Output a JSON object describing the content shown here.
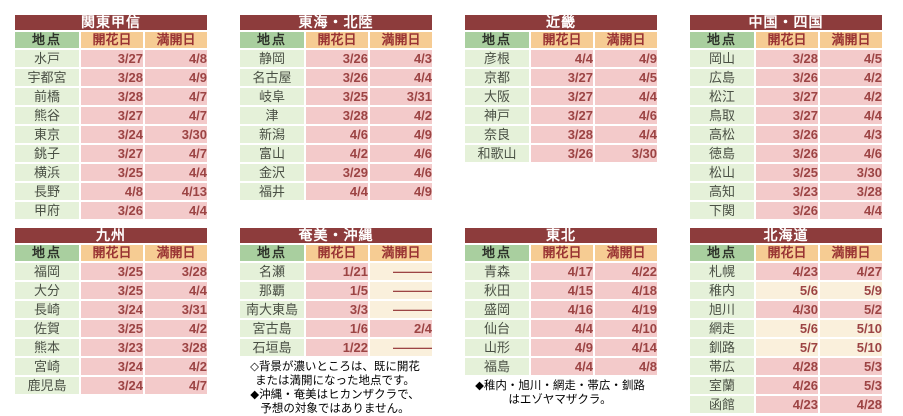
{
  "colors": {
    "title_bg": "#8d3c3c",
    "title_text": "#ffffff",
    "header_loc_bg": "#a9cf9f",
    "header_loc_text": "#2e332b",
    "header_date_bg": "#f6cc93",
    "header_date_text": "#993333",
    "loc_bg": "#e5f1d9",
    "loc_text": "#4a5045",
    "bloomed_bg": "#f3caca",
    "pending_bg": "#faf0dc",
    "date_text": "#9c4444",
    "note_text": "#000000"
  },
  "column_headers": {
    "location": "地点",
    "flowering": "開花日",
    "full_bloom": "満開日"
  },
  "regions": [
    {
      "title": "関東甲信",
      "rows": [
        {
          "name": "水戸",
          "flowering": "3/27",
          "flowering_bloomed": true,
          "full_bloom": "4/8",
          "full_bloom_bloomed": true
        },
        {
          "name": "宇都宮",
          "flowering": "3/28",
          "flowering_bloomed": true,
          "full_bloom": "4/9",
          "full_bloom_bloomed": true
        },
        {
          "name": "前橋",
          "flowering": "3/28",
          "flowering_bloomed": true,
          "full_bloom": "4/7",
          "full_bloom_bloomed": true
        },
        {
          "name": "熊谷",
          "flowering": "3/27",
          "flowering_bloomed": true,
          "full_bloom": "4/7",
          "full_bloom_bloomed": true
        },
        {
          "name": "東京",
          "flowering": "3/24",
          "flowering_bloomed": true,
          "full_bloom": "3/30",
          "full_bloom_bloomed": true
        },
        {
          "name": "銚子",
          "flowering": "3/27",
          "flowering_bloomed": true,
          "full_bloom": "4/7",
          "full_bloom_bloomed": true
        },
        {
          "name": "横浜",
          "flowering": "3/25",
          "flowering_bloomed": true,
          "full_bloom": "4/4",
          "full_bloom_bloomed": true
        },
        {
          "name": "長野",
          "flowering": "4/8",
          "flowering_bloomed": true,
          "full_bloom": "4/13",
          "full_bloom_bloomed": true
        },
        {
          "name": "甲府",
          "flowering": "3/26",
          "flowering_bloomed": true,
          "full_bloom": "4/4",
          "full_bloom_bloomed": true
        }
      ],
      "notes": []
    },
    {
      "title": "東海・北陸",
      "rows": [
        {
          "name": "静岡",
          "flowering": "3/26",
          "flowering_bloomed": true,
          "full_bloom": "4/3",
          "full_bloom_bloomed": true
        },
        {
          "name": "名古屋",
          "flowering": "3/26",
          "flowering_bloomed": true,
          "full_bloom": "4/4",
          "full_bloom_bloomed": true
        },
        {
          "name": "岐阜",
          "flowering": "3/25",
          "flowering_bloomed": true,
          "full_bloom": "3/31",
          "full_bloom_bloomed": true
        },
        {
          "name": "津",
          "flowering": "3/28",
          "flowering_bloomed": true,
          "full_bloom": "4/2",
          "full_bloom_bloomed": true
        },
        {
          "name": "新潟",
          "flowering": "4/6",
          "flowering_bloomed": true,
          "full_bloom": "4/9",
          "full_bloom_bloomed": true
        },
        {
          "name": "富山",
          "flowering": "4/2",
          "flowering_bloomed": true,
          "full_bloom": "4/6",
          "full_bloom_bloomed": true
        },
        {
          "name": "金沢",
          "flowering": "3/29",
          "flowering_bloomed": true,
          "full_bloom": "4/6",
          "full_bloom_bloomed": true
        },
        {
          "name": "福井",
          "flowering": "4/4",
          "flowering_bloomed": true,
          "full_bloom": "4/9",
          "full_bloom_bloomed": true
        }
      ],
      "notes": []
    },
    {
      "title": "近畿",
      "rows": [
        {
          "name": "彦根",
          "flowering": "4/4",
          "flowering_bloomed": true,
          "full_bloom": "4/9",
          "full_bloom_bloomed": true
        },
        {
          "name": "京都",
          "flowering": "3/27",
          "flowering_bloomed": true,
          "full_bloom": "4/5",
          "full_bloom_bloomed": true
        },
        {
          "name": "大阪",
          "flowering": "3/27",
          "flowering_bloomed": true,
          "full_bloom": "4/4",
          "full_bloom_bloomed": true
        },
        {
          "name": "神戸",
          "flowering": "3/27",
          "flowering_bloomed": true,
          "full_bloom": "4/6",
          "full_bloom_bloomed": true
        },
        {
          "name": "奈良",
          "flowering": "3/28",
          "flowering_bloomed": true,
          "full_bloom": "4/4",
          "full_bloom_bloomed": true
        },
        {
          "name": "和歌山",
          "flowering": "3/26",
          "flowering_bloomed": true,
          "full_bloom": "3/30",
          "full_bloom_bloomed": true
        }
      ],
      "notes": []
    },
    {
      "title": "中国・四国",
      "rows": [
        {
          "name": "岡山",
          "flowering": "3/28",
          "flowering_bloomed": true,
          "full_bloom": "4/5",
          "full_bloom_bloomed": true
        },
        {
          "name": "広島",
          "flowering": "3/26",
          "flowering_bloomed": true,
          "full_bloom": "4/2",
          "full_bloom_bloomed": true
        },
        {
          "name": "松江",
          "flowering": "3/27",
          "flowering_bloomed": true,
          "full_bloom": "4/2",
          "full_bloom_bloomed": true
        },
        {
          "name": "鳥取",
          "flowering": "3/27",
          "flowering_bloomed": true,
          "full_bloom": "4/4",
          "full_bloom_bloomed": true
        },
        {
          "name": "高松",
          "flowering": "3/26",
          "flowering_bloomed": true,
          "full_bloom": "4/3",
          "full_bloom_bloomed": true
        },
        {
          "name": "徳島",
          "flowering": "3/26",
          "flowering_bloomed": true,
          "full_bloom": "4/6",
          "full_bloom_bloomed": true
        },
        {
          "name": "松山",
          "flowering": "3/25",
          "flowering_bloomed": true,
          "full_bloom": "3/30",
          "full_bloom_bloomed": true
        },
        {
          "name": "高知",
          "flowering": "3/23",
          "flowering_bloomed": true,
          "full_bloom": "3/28",
          "full_bloom_bloomed": true
        },
        {
          "name": "下関",
          "flowering": "3/26",
          "flowering_bloomed": true,
          "full_bloom": "4/4",
          "full_bloom_bloomed": true
        }
      ],
      "notes": []
    },
    {
      "title": "九州",
      "rows": [
        {
          "name": "福岡",
          "flowering": "3/25",
          "flowering_bloomed": true,
          "full_bloom": "3/28",
          "full_bloom_bloomed": true
        },
        {
          "name": "大分",
          "flowering": "3/25",
          "flowering_bloomed": true,
          "full_bloom": "4/4",
          "full_bloom_bloomed": true
        },
        {
          "name": "長崎",
          "flowering": "3/24",
          "flowering_bloomed": true,
          "full_bloom": "3/31",
          "full_bloom_bloomed": true
        },
        {
          "name": "佐賀",
          "flowering": "3/25",
          "flowering_bloomed": true,
          "full_bloom": "4/2",
          "full_bloom_bloomed": true
        },
        {
          "name": "熊本",
          "flowering": "3/23",
          "flowering_bloomed": true,
          "full_bloom": "3/28",
          "full_bloom_bloomed": true
        },
        {
          "name": "宮崎",
          "flowering": "3/24",
          "flowering_bloomed": true,
          "full_bloom": "4/2",
          "full_bloom_bloomed": true
        },
        {
          "name": "鹿児島",
          "flowering": "3/24",
          "flowering_bloomed": true,
          "full_bloom": "4/7",
          "full_bloom_bloomed": true
        }
      ],
      "notes": []
    },
    {
      "title": "奄美・沖縄",
      "rows": [
        {
          "name": "名瀬",
          "flowering": "1/21",
          "flowering_bloomed": true,
          "full_bloom": "―――",
          "full_bloom_bloomed": false
        },
        {
          "name": "那覇",
          "flowering": "1/5",
          "flowering_bloomed": true,
          "full_bloom": "―――",
          "full_bloom_bloomed": false
        },
        {
          "name": "南大東島",
          "flowering": "3/3",
          "flowering_bloomed": true,
          "full_bloom": "―――",
          "full_bloom_bloomed": false
        },
        {
          "name": "宮古島",
          "flowering": "1/6",
          "flowering_bloomed": true,
          "full_bloom": "2/4",
          "full_bloom_bloomed": true
        },
        {
          "name": "石垣島",
          "flowering": "1/22",
          "flowering_bloomed": true,
          "full_bloom": "―――",
          "full_bloom_bloomed": false
        }
      ],
      "notes": [
        "◇背景が濃いところは、既に開花",
        "または満開になった地点です。",
        "◆沖縄・奄美はヒカンザクラで、",
        "予想の対象ではありません。"
      ]
    },
    {
      "title": "東北",
      "rows": [
        {
          "name": "青森",
          "flowering": "4/17",
          "flowering_bloomed": true,
          "full_bloom": "4/22",
          "full_bloom_bloomed": true
        },
        {
          "name": "秋田",
          "flowering": "4/15",
          "flowering_bloomed": true,
          "full_bloom": "4/18",
          "full_bloom_bloomed": true
        },
        {
          "name": "盛岡",
          "flowering": "4/16",
          "flowering_bloomed": true,
          "full_bloom": "4/19",
          "full_bloom_bloomed": true
        },
        {
          "name": "仙台",
          "flowering": "4/4",
          "flowering_bloomed": true,
          "full_bloom": "4/10",
          "full_bloom_bloomed": true
        },
        {
          "name": "山形",
          "flowering": "4/9",
          "flowering_bloomed": true,
          "full_bloom": "4/14",
          "full_bloom_bloomed": true
        },
        {
          "name": "福島",
          "flowering": "4/4",
          "flowering_bloomed": true,
          "full_bloom": "4/8",
          "full_bloom_bloomed": true
        }
      ],
      "notes": [
        "◆稚内・旭川・網走・帯広・釧路",
        "はエゾヤマザクラ。"
      ]
    },
    {
      "title": "北海道",
      "rows": [
        {
          "name": "札幌",
          "flowering": "4/23",
          "flowering_bloomed": true,
          "full_bloom": "4/27",
          "full_bloom_bloomed": true
        },
        {
          "name": "稚内",
          "flowering": "5/6",
          "flowering_bloomed": false,
          "full_bloom": "5/9",
          "full_bloom_bloomed": false
        },
        {
          "name": "旭川",
          "flowering": "4/30",
          "flowering_bloomed": true,
          "full_bloom": "5/2",
          "full_bloom_bloomed": true
        },
        {
          "name": "網走",
          "flowering": "5/6",
          "flowering_bloomed": false,
          "full_bloom": "5/10",
          "full_bloom_bloomed": false
        },
        {
          "name": "釧路",
          "flowering": "5/7",
          "flowering_bloomed": false,
          "full_bloom": "5/10",
          "full_bloom_bloomed": false
        },
        {
          "name": "帯広",
          "flowering": "4/28",
          "flowering_bloomed": true,
          "full_bloom": "5/3",
          "full_bloom_bloomed": true
        },
        {
          "name": "室蘭",
          "flowering": "4/26",
          "flowering_bloomed": true,
          "full_bloom": "5/3",
          "full_bloom_bloomed": true
        },
        {
          "name": "函館",
          "flowering": "4/23",
          "flowering_bloomed": true,
          "full_bloom": "4/28",
          "full_bloom_bloomed": true
        }
      ],
      "notes": []
    }
  ]
}
